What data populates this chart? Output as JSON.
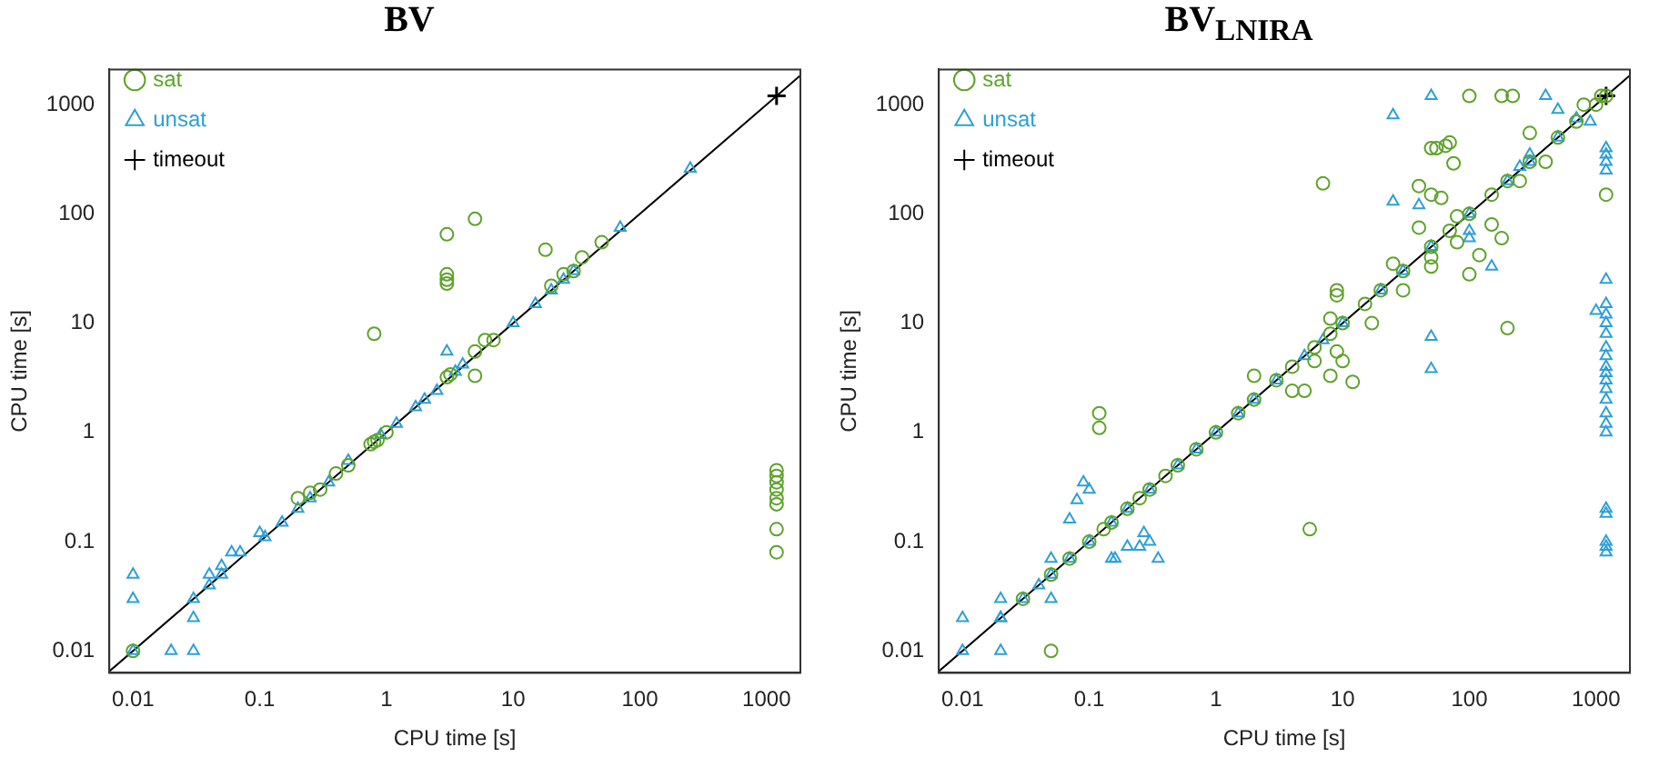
{
  "chart_data": [
    {
      "type": "scatter",
      "title": "BV",
      "xlabel": "CPU time [s]",
      "ylabel": "CPU time [s]",
      "log": "xy",
      "grid": false,
      "legend": "top left",
      "xlim": [
        0.0065,
        1850
      ],
      "ylim": [
        0.0063,
        2100
      ],
      "xticks": [
        0.01,
        0.1,
        1,
        10,
        100,
        1000
      ],
      "yticks": [
        0.01,
        0.1,
        1,
        10,
        100,
        1000
      ],
      "series": [
        {
          "name": "sat",
          "color": "#5ea32a",
          "marker": "circle",
          "x": [
            0.01,
            0.2,
            0.25,
            0.3,
            0.4,
            0.5,
            0.75,
            0.8,
            0.85,
            1,
            3,
            3.2,
            5,
            6,
            7,
            20,
            25,
            30,
            35,
            50,
            3,
            3,
            3,
            3,
            5,
            18,
            0.8,
            5,
            1200,
            1200,
            1200,
            1200,
            1200,
            1200,
            1200,
            1200
          ],
          "values": [
            0.01,
            0.25,
            0.28,
            0.3,
            0.42,
            0.5,
            0.78,
            0.82,
            0.85,
            1,
            3.2,
            3.4,
            5.5,
            7,
            7,
            22,
            28,
            30,
            40,
            55,
            65,
            28,
            25,
            23,
            90,
            47,
            8,
            3.3,
            0.45,
            0.4,
            0.35,
            0.3,
            0.25,
            0.22,
            0.13,
            0.08
          ]
        },
        {
          "name": "unsat",
          "color": "#2e9fd8",
          "marker": "triangle",
          "x": [
            0.01,
            0.01,
            0.01,
            0.02,
            0.03,
            0.03,
            0.03,
            0.04,
            0.04,
            0.05,
            0.05,
            0.06,
            0.07,
            0.1,
            0.11,
            0.15,
            0.2,
            0.25,
            0.35,
            0.5,
            0.9,
            1.2,
            1.7,
            2,
            2.5,
            3,
            3.5,
            4,
            10,
            15,
            20,
            25,
            30,
            70,
            250
          ],
          "values": [
            0.05,
            0.03,
            0.01,
            0.01,
            0.01,
            0.03,
            0.02,
            0.05,
            0.04,
            0.06,
            0.05,
            0.08,
            0.08,
            0.12,
            0.11,
            0.15,
            0.2,
            0.25,
            0.35,
            0.55,
            0.95,
            1.2,
            1.7,
            2,
            2.4,
            5.5,
            3.6,
            4.2,
            10,
            15,
            20,
            25,
            30,
            75,
            260
          ]
        },
        {
          "name": "timeout",
          "color": "#000000",
          "marker": "cross",
          "x": [
            1200
          ],
          "values": [
            1200
          ]
        },
        {
          "type": "line",
          "color": "#000000",
          "marker": "none",
          "x": [
            0.0065,
            1850
          ],
          "values": [
            0.0065,
            1850
          ]
        }
      ]
    },
    {
      "type": "scatter",
      "title": "BV$_{LNIRA}$",
      "xlabel": "CPU time [s]",
      "ylabel": "CPU time [s]",
      "log": "xy",
      "grid": false,
      "legend": "top left",
      "xlim": [
        0.0065,
        1850
      ],
      "ylim": [
        0.0063,
        2100
      ],
      "xticks": [
        0.01,
        0.1,
        1,
        10,
        100,
        1000
      ],
      "yticks": [
        0.01,
        0.1,
        1,
        10,
        100,
        1000
      ],
      "series": [
        {
          "name": "sat",
          "color": "#5ea32a",
          "marker": "circle",
          "x": [
            0.03,
            0.05,
            0.07,
            0.1,
            0.13,
            0.15,
            0.2,
            0.25,
            0.3,
            0.4,
            0.5,
            0.7,
            1,
            1.5,
            2,
            3,
            4,
            6,
            8,
            10,
            15,
            20,
            30,
            50,
            70,
            100,
            150,
            200,
            300,
            500,
            700,
            1000,
            0.05,
            0.12,
            0.12,
            5.5,
            2,
            4,
            5,
            6,
            8,
            9,
            10,
            12,
            8,
            9,
            9,
            17,
            25,
            30,
            40,
            7,
            40,
            50,
            55,
            65,
            70,
            75,
            50,
            60,
            80,
            80,
            50,
            50,
            100,
            120,
            150,
            180,
            200,
            100,
            180,
            220,
            800,
            1200,
            1200,
            300,
            400,
            250,
            1100
          ],
          "values": [
            0.03,
            0.05,
            0.07,
            0.1,
            0.13,
            0.15,
            0.2,
            0.25,
            0.3,
            0.4,
            0.5,
            0.7,
            1,
            1.5,
            2,
            3,
            4,
            6,
            8,
            10,
            15,
            20,
            30,
            50,
            70,
            100,
            150,
            200,
            300,
            500,
            700,
            1000,
            0.01,
            1.5,
            1.1,
            0.13,
            3.3,
            2.4,
            2.4,
            4.5,
            3.3,
            5.5,
            4.5,
            2.9,
            11,
            18,
            20,
            10,
            35,
            20,
            75,
            190,
            180,
            400,
            400,
            420,
            450,
            290,
            150,
            140,
            95,
            55,
            40,
            33,
            28,
            42,
            80,
            60,
            9,
            1200,
            1200,
            1200,
            1000,
            1200,
            150,
            550,
            300,
            200,
            1200
          ]
        },
        {
          "name": "unsat",
          "color": "#2e9fd8",
          "marker": "triangle",
          "x": [
            0.01,
            0.02,
            0.03,
            0.05,
            0.07,
            0.1,
            0.15,
            0.2,
            0.3,
            0.5,
            0.7,
            1,
            1.5,
            2,
            3,
            5,
            7,
            10,
            20,
            30,
            50,
            100,
            200,
            300,
            500,
            0.01,
            0.02,
            0.02,
            0.02,
            0.05,
            0.04,
            0.05,
            0.09,
            0.1,
            0.08,
            0.07,
            0.15,
            0.16,
            0.2,
            0.25,
            0.3,
            0.35,
            0.27,
            25,
            40,
            25,
            50,
            50,
            50,
            100,
            100,
            150,
            400,
            500,
            700,
            900,
            250,
            300,
            1000,
            1200,
            1200,
            1200,
            1200,
            1200,
            1200,
            1200,
            1200,
            1200,
            1200,
            1200,
            1200,
            1200,
            1200,
            1200,
            1200,
            1200,
            1200,
            1200,
            1200,
            1200,
            1200,
            1200,
            1200
          ],
          "values": [
            0.01,
            0.02,
            0.03,
            0.05,
            0.07,
            0.1,
            0.15,
            0.2,
            0.3,
            0.5,
            0.7,
            1,
            1.5,
            2,
            3,
            5,
            7,
            10,
            20,
            30,
            50,
            100,
            200,
            300,
            500,
            0.02,
            0.03,
            0.02,
            0.01,
            0.07,
            0.04,
            0.03,
            0.35,
            0.3,
            0.24,
            0.16,
            0.07,
            0.07,
            0.09,
            0.09,
            0.1,
            0.07,
            0.12,
            130,
            120,
            800,
            1200,
            7.5,
            3.8,
            70,
            60,
            33,
            1200,
            900,
            750,
            700,
            270,
            350,
            13,
            400,
            350,
            300,
            250,
            25,
            15,
            12,
            10,
            8,
            6,
            5,
            4,
            3.5,
            3,
            2.5,
            2,
            1.5,
            1.2,
            1,
            0.2,
            0.18,
            0.1,
            0.09,
            0.08
          ]
        },
        {
          "name": "timeout",
          "color": "#000000",
          "marker": "cross",
          "x": [
            1200
          ],
          "values": [
            1200
          ]
        },
        {
          "type": "line",
          "color": "#000000",
          "marker": "none",
          "x": [
            0.0065,
            1850
          ],
          "values": [
            0.0065,
            1850
          ]
        }
      ]
    }
  ]
}
